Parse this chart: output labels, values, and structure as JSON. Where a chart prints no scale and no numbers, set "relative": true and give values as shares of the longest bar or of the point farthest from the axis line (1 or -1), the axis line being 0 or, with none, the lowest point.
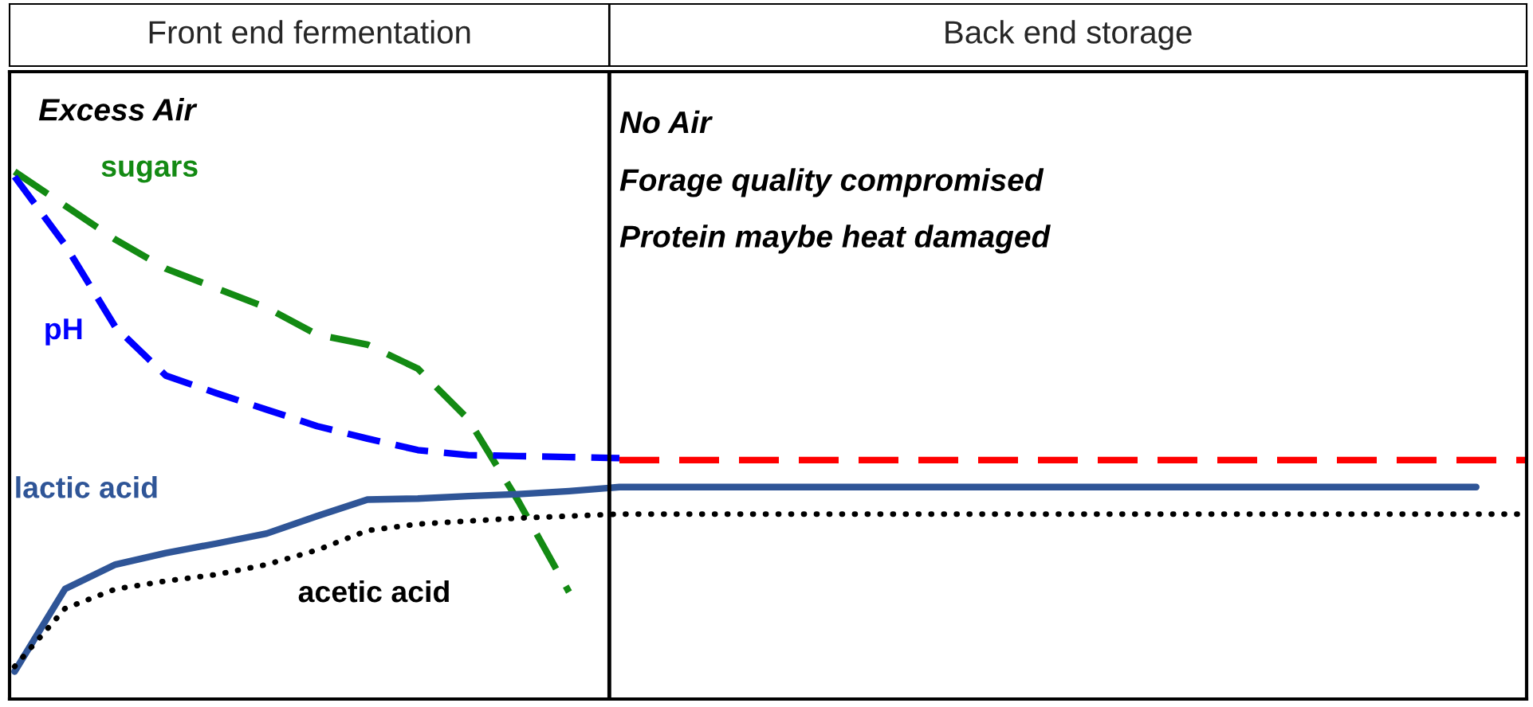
{
  "chart_data": {
    "type": "line",
    "relative": true,
    "categories": [
      null,
      null,
      null,
      null,
      null,
      null,
      null,
      null,
      null,
      null,
      null,
      null,
      null,
      null,
      null,
      null,
      null,
      null,
      null,
      null,
      null,
      null,
      null,
      null,
      null,
      null,
      null,
      null,
      null,
      null,
      null
    ],
    "series": [
      {
        "name": "sugars",
        "color": "#138a13",
        "line_style": "dashed",
        "values": [
          1.0,
          0.932,
          0.864,
          0.806,
          0.767,
          0.728,
          0.674,
          0.654,
          0.606,
          0.505,
          0.34,
          0.159,
          null,
          null,
          null,
          null,
          null,
          null,
          null,
          null,
          null,
          null,
          null,
          null,
          null,
          null,
          null,
          null,
          null,
          null,
          null
        ]
      },
      {
        "name": "pH",
        "color": "#0000ff",
        "line_style": "dashed",
        "values": [
          0.99,
          0.854,
          0.689,
          0.592,
          0.557,
          0.524,
          0.491,
          0.466,
          0.443,
          0.433,
          0.431,
          0.429,
          0.427,
          null,
          null,
          null,
          null,
          null,
          null,
          null,
          null,
          null,
          null,
          null,
          null,
          null,
          null,
          null,
          null,
          null,
          null
        ]
      },
      {
        "name": "lactic acid",
        "color": "#2f5597",
        "line_style": "solid",
        "values": [
          0.0,
          0.165,
          0.214,
          0.237,
          0.256,
          0.276,
          0.311,
          0.344,
          0.346,
          0.351,
          0.355,
          0.361,
          0.369,
          0.369,
          0.369,
          0.369,
          0.369,
          0.369,
          0.369,
          0.369,
          0.369,
          0.369,
          0.369,
          0.369,
          0.369,
          0.369,
          0.369,
          0.369,
          0.369,
          0.369,
          null
        ]
      },
      {
        "name": "acetic acid",
        "color": "#000000",
        "line_style": "dotted",
        "values": [
          0.01,
          0.126,
          0.165,
          0.181,
          0.194,
          0.214,
          0.243,
          0.282,
          0.295,
          0.301,
          0.307,
          0.311,
          0.315,
          0.315,
          0.315,
          0.315,
          0.315,
          0.315,
          0.315,
          0.315,
          0.315,
          0.315,
          0.315,
          0.315,
          0.315,
          0.315,
          0.315,
          0.315,
          0.315,
          0.315,
          0.315
        ]
      },
      {
        "color": "#ff0000",
        "line_style": "dashed",
        "values": [
          null,
          null,
          null,
          null,
          null,
          null,
          null,
          null,
          null,
          null,
          null,
          null,
          0.423,
          0.423,
          0.423,
          0.423,
          0.423,
          0.423,
          0.423,
          0.423,
          0.423,
          0.423,
          0.423,
          0.423,
          0.423,
          0.423,
          0.423,
          0.423,
          0.423,
          0.423,
          0.423
        ]
      }
    ],
    "annotations": [
      "Front end fermentation",
      "Back end storage",
      "Excess Air",
      "No Air",
      "Forage quality compromised",
      "Protein maybe heat damaged"
    ],
    "marker": "none"
  }
}
